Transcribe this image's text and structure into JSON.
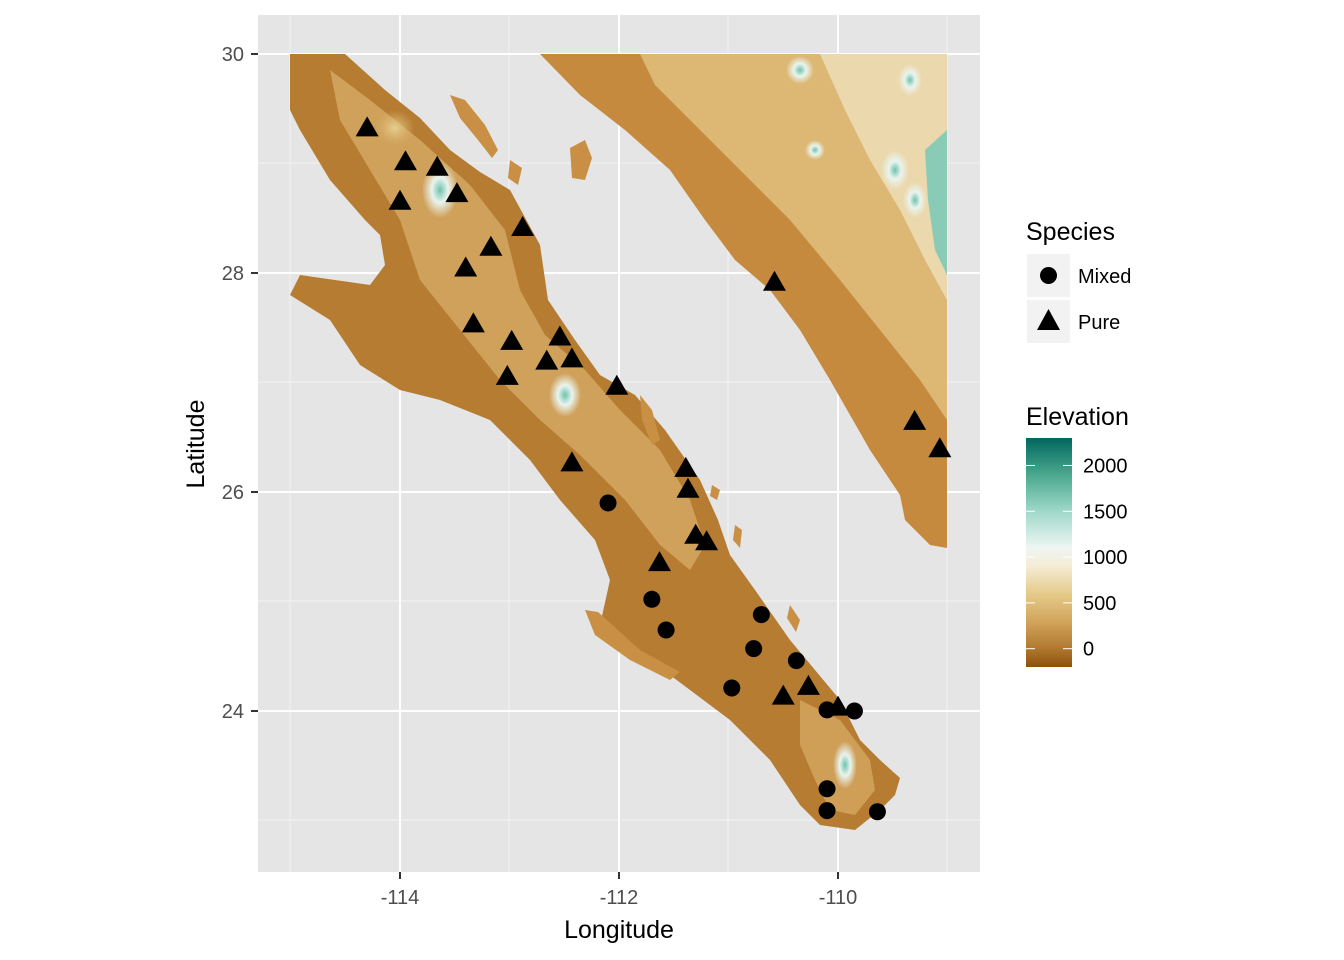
{
  "chart_data": {
    "type": "scatter",
    "map_type": "elevation raster map with occurrence points",
    "xlabel": "Longitude",
    "ylabel": "Latitude",
    "xlim": [
      -115.3,
      -108.6
    ],
    "ylim": [
      22.6,
      30.35
    ],
    "x_ticks": [
      {
        "value": -114,
        "label": "-114"
      },
      {
        "value": -112,
        "label": "-112"
      },
      {
        "value": -110,
        "label": "-110"
      }
    ],
    "y_ticks": [
      {
        "value": 24,
        "label": "24"
      },
      {
        "value": 26,
        "label": "26"
      },
      {
        "value": 28,
        "label": "28"
      },
      {
        "value": 30,
        "label": "30"
      }
    ],
    "grid": true,
    "legend_placement": "right",
    "series": [
      {
        "name": "Mixed",
        "shape": "circle",
        "points": [
          {
            "x": -112.1,
            "y": 25.9
          },
          {
            "x": -111.7,
            "y": 25.02
          },
          {
            "x": -111.57,
            "y": 24.74
          },
          {
            "x": -110.7,
            "y": 24.88
          },
          {
            "x": -110.77,
            "y": 24.57
          },
          {
            "x": -110.38,
            "y": 24.46
          },
          {
            "x": -110.97,
            "y": 24.21
          },
          {
            "x": -110.1,
            "y": 24.01
          },
          {
            "x": -109.85,
            "y": 24.0
          },
          {
            "x": -110.1,
            "y": 23.29
          },
          {
            "x": -110.1,
            "y": 23.09
          },
          {
            "x": -109.64,
            "y": 23.08
          }
        ]
      },
      {
        "name": "Pure",
        "shape": "triangle",
        "points": [
          {
            "x": -114.3,
            "y": 29.33
          },
          {
            "x": -113.95,
            "y": 29.02
          },
          {
            "x": -113.66,
            "y": 28.97
          },
          {
            "x": -113.48,
            "y": 28.73
          },
          {
            "x": -114.0,
            "y": 28.66
          },
          {
            "x": -112.88,
            "y": 28.42
          },
          {
            "x": -113.17,
            "y": 28.24
          },
          {
            "x": -113.4,
            "y": 28.05
          },
          {
            "x": -113.33,
            "y": 27.54
          },
          {
            "x": -112.98,
            "y": 27.38
          },
          {
            "x": -112.54,
            "y": 27.42
          },
          {
            "x": -112.66,
            "y": 27.2
          },
          {
            "x": -112.43,
            "y": 27.22
          },
          {
            "x": -113.02,
            "y": 27.06
          },
          {
            "x": -112.02,
            "y": 26.97
          },
          {
            "x": -112.43,
            "y": 26.27
          },
          {
            "x": -111.39,
            "y": 26.22
          },
          {
            "x": -111.37,
            "y": 26.03
          },
          {
            "x": -111.3,
            "y": 25.61
          },
          {
            "x": -111.2,
            "y": 25.55
          },
          {
            "x": -111.63,
            "y": 25.36
          },
          {
            "x": -110.5,
            "y": 24.14
          },
          {
            "x": -110.27,
            "y": 24.23
          },
          {
            "x": -110.0,
            "y": 24.04
          },
          {
            "x": -110.58,
            "y": 27.92
          },
          {
            "x": -109.3,
            "y": 26.65
          },
          {
            "x": -109.07,
            "y": 26.4
          }
        ]
      }
    ],
    "elevation_scale": {
      "title": "Elevation",
      "min": -200,
      "max": 2300,
      "ticks": [
        {
          "value": 2000,
          "label": "2000"
        },
        {
          "value": 1500,
          "label": "1500"
        },
        {
          "value": 1000,
          "label": "1000"
        },
        {
          "value": 500,
          "label": "500"
        },
        {
          "value": 0,
          "label": "0"
        }
      ],
      "colors": [
        {
          "value": -200,
          "color": "#8c510a"
        },
        {
          "value": 0,
          "color": "#b0782e"
        },
        {
          "value": 300,
          "color": "#d2a55d"
        },
        {
          "value": 600,
          "color": "#e5cb8a"
        },
        {
          "value": 900,
          "color": "#f5ecd5"
        },
        {
          "value": 1100,
          "color": "#eef6f3"
        },
        {
          "value": 1500,
          "color": "#9fd8c9"
        },
        {
          "value": 1900,
          "color": "#4aa88e"
        },
        {
          "value": 2300,
          "color": "#01665e"
        }
      ]
    }
  },
  "legend": {
    "species_title": "Species",
    "species_items": [
      {
        "label": "Mixed",
        "shape": "circle"
      },
      {
        "label": "Pure",
        "shape": "triangle"
      }
    ],
    "elevation_title": "Elevation"
  },
  "colors": {
    "panel_background": "#e5e5e5",
    "grid_major": "#ffffff",
    "point": "#000000",
    "lowland": "#b57c32",
    "upland": "#dbb56f",
    "mountain": "#a9dcd0"
  }
}
